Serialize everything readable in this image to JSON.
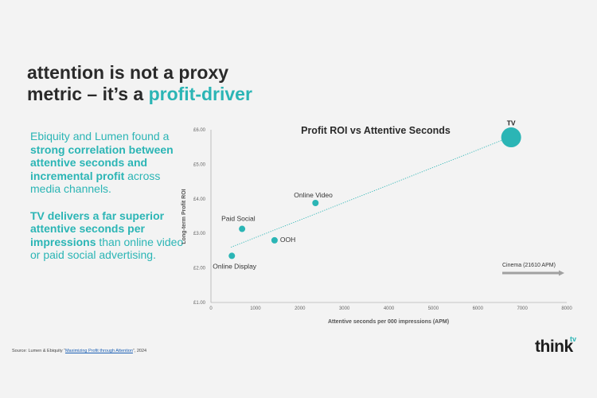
{
  "headline": {
    "line1": "attention is not a proxy",
    "line2_prefix": "metric – it’s a ",
    "line2_accent": "profit-driver"
  },
  "body": {
    "p1_a": "Ebiquity and Lumen found a ",
    "p1_b": "strong correlation between attentive seconds and incremental profit",
    "p1_c": " across media channels.",
    "p2_a": "TV delivers a far superior attentive seconds per impressions",
    "p2_b": " than online video or paid social advertising."
  },
  "source": {
    "prefix": "Source: Lumen & Ebiquity “",
    "link": "Maximizing Profit through Attention",
    "suffix": "”, 2024"
  },
  "logo": {
    "main": "think",
    "sup": "tv"
  },
  "colors": {
    "accent": "#2bb5b5",
    "text": "#2a2a2a",
    "background": "#f3f3f3"
  },
  "chart_data": {
    "type": "scatter",
    "title": "Profit ROI vs Attentive Seconds",
    "xlabel": "Attentive seconds per 000 impressions (APM)",
    "ylabel": "Long-term Profit ROI",
    "xlim": [
      0,
      8000
    ],
    "ylim": [
      1,
      6
    ],
    "xticks": [
      0,
      1000,
      2000,
      3000,
      4000,
      5000,
      6000,
      7000,
      8000
    ],
    "xtick_labels": [
      "0",
      "1000",
      "2000",
      "3000",
      "4000",
      "5000",
      "6000",
      "7000",
      "8000"
    ],
    "yticks": [
      1,
      2,
      3,
      4,
      5,
      6
    ],
    "ytick_labels": [
      "£1.00",
      "£2.00",
      "£3.00",
      "£4.00",
      "£5.00",
      "£6.00"
    ],
    "grid": false,
    "trendline": {
      "x": [
        450,
        6750
      ],
      "y": [
        2.6,
        5.8
      ]
    },
    "points": [
      {
        "label": "Online Display",
        "x": 470,
        "y": 2.35,
        "size": "small"
      },
      {
        "label": "Paid Social",
        "x": 700,
        "y": 3.13,
        "size": "small"
      },
      {
        "label": "OOH",
        "x": 1430,
        "y": 2.8,
        "size": "small"
      },
      {
        "label": "Online Video",
        "x": 2350,
        "y": 3.88,
        "size": "small"
      },
      {
        "label": "TV",
        "x": 6750,
        "y": 5.78,
        "size": "large"
      }
    ],
    "annotation": {
      "text": "Cinema (21610 APM)",
      "arrow": "right"
    }
  }
}
